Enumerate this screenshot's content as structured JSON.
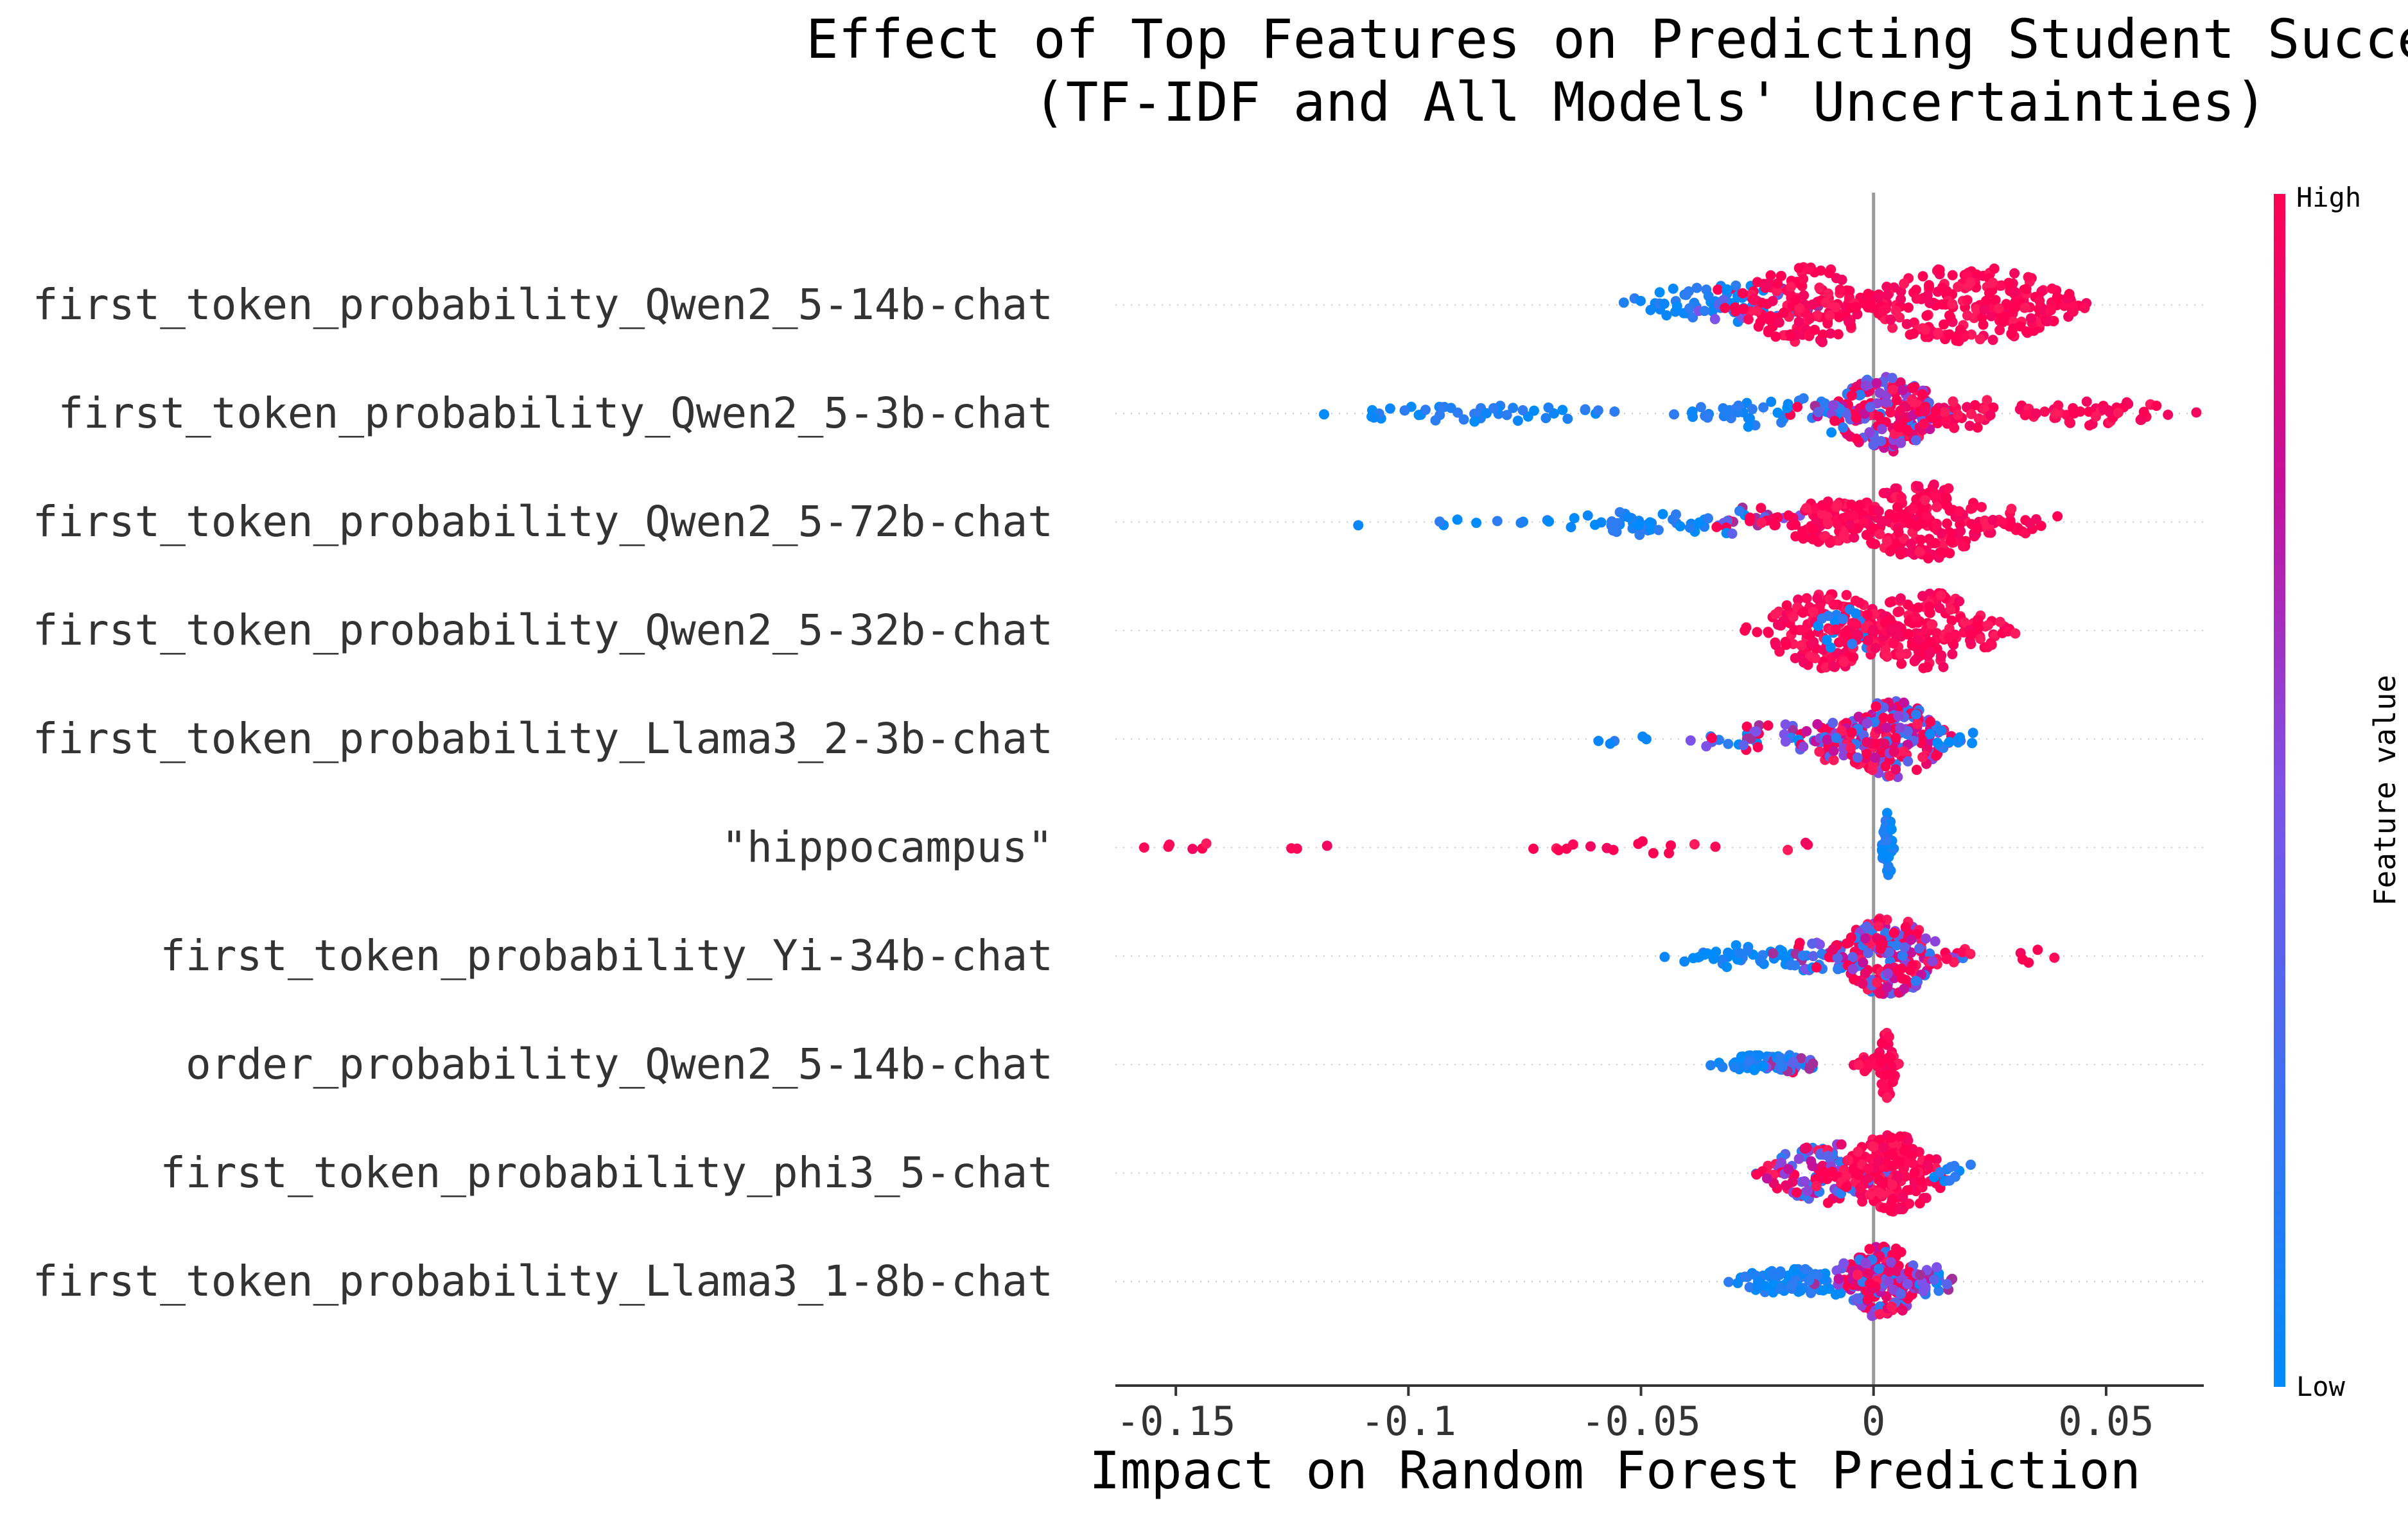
{
  "chart_data": {
    "type": "scatter",
    "subtype": "shap-beeswarm",
    "title": "Effect of Top Features on Predicting Student Success",
    "subtitle": "(TF-IDF and All Models' Uncertainties)",
    "xlabel": "Impact on Random Forest Prediction",
    "xlim": [
      -0.163,
      0.071
    ],
    "xticks": [
      -0.15,
      -0.1,
      -0.05,
      0,
      0.05
    ],
    "xtick_labels": [
      "-0.15",
      "-0.1",
      "-0.05",
      "0",
      "0.05"
    ],
    "zero_line": true,
    "colorbar": {
      "title": "Feature value",
      "high_label": "High",
      "low_label": "Low",
      "low_color": "#008bfb",
      "high_color": "#ff0052"
    },
    "features": [
      {
        "label": "first_token_probability_Qwen2_5-14b-chat",
        "clusters": [
          {
            "center": -0.05,
            "spread": 0.004,
            "n": 6,
            "color": "low",
            "width": 0.3
          },
          {
            "center": -0.037,
            "spread": 0.008,
            "n": 40,
            "color": "low",
            "width": 0.55
          },
          {
            "center": -0.026,
            "spread": 0.007,
            "n": 40,
            "color": "mixlow",
            "width": 0.55
          },
          {
            "center": -0.014,
            "spread": 0.008,
            "n": 150,
            "color": "high",
            "width": 1.0
          },
          {
            "center": 0.0,
            "spread": 0.005,
            "n": 12,
            "color": "high",
            "width": 0.3
          },
          {
            "center": 0.02,
            "spread": 0.012,
            "n": 200,
            "color": "high",
            "width": 1.0
          },
          {
            "center": 0.035,
            "spread": 0.005,
            "n": 35,
            "color": "high",
            "width": 0.5
          }
        ]
      },
      {
        "label": "first_token_probability_Qwen2_5-3b-chat",
        "clusters": [
          {
            "center": -0.085,
            "spread": 0.018,
            "n": 45,
            "color": "low",
            "width": 0.22
          },
          {
            "center": -0.025,
            "spread": 0.008,
            "n": 35,
            "color": "low",
            "width": 0.35
          },
          {
            "center": -0.01,
            "spread": 0.005,
            "n": 25,
            "color": "mixlow",
            "width": 0.5
          },
          {
            "center": 0.003,
            "spread": 0.006,
            "n": 180,
            "color": "mix",
            "width": 1.0
          },
          {
            "center": 0.02,
            "spread": 0.008,
            "n": 45,
            "color": "high",
            "width": 0.4
          },
          {
            "center": 0.05,
            "spread": 0.008,
            "n": 45,
            "color": "high",
            "width": 0.35
          }
        ]
      },
      {
        "label": "first_token_probability_Qwen2_5-72b-chat",
        "clusters": [
          {
            "center": -0.111,
            "spread": 0.001,
            "n": 1,
            "color": "low",
            "width": 0.1
          },
          {
            "center": -0.088,
            "spread": 0.004,
            "n": 5,
            "color": "low",
            "width": 0.2
          },
          {
            "center": -0.05,
            "spread": 0.01,
            "n": 45,
            "color": "low",
            "width": 0.35
          },
          {
            "center": -0.025,
            "spread": 0.006,
            "n": 25,
            "color": "mixlow",
            "width": 0.4
          },
          {
            "center": -0.01,
            "spread": 0.006,
            "n": 90,
            "color": "high",
            "width": 0.55
          },
          {
            "center": 0.01,
            "spread": 0.008,
            "n": 190,
            "color": "high",
            "width": 1.0
          },
          {
            "center": 0.03,
            "spread": 0.006,
            "n": 25,
            "color": "high",
            "width": 0.35
          }
        ]
      },
      {
        "label": "first_token_probability_Qwen2_5-32b-chat",
        "clusters": [
          {
            "center": -0.01,
            "spread": 0.007,
            "n": 160,
            "color": "high",
            "width": 1.0
          },
          {
            "center": -0.005,
            "spread": 0.004,
            "n": 18,
            "color": "low",
            "width": 0.6
          },
          {
            "center": 0.012,
            "spread": 0.008,
            "n": 170,
            "color": "high",
            "width": 1.0
          }
        ]
      },
      {
        "label": "first_token_probability_Llama3_2-3b-chat",
        "clusters": [
          {
            "center": -0.055,
            "spread": 0.004,
            "n": 5,
            "color": "low",
            "width": 0.15
          },
          {
            "center": -0.035,
            "spread": 0.004,
            "n": 5,
            "color": "mixlow",
            "width": 0.2
          },
          {
            "center": -0.022,
            "spread": 0.006,
            "n": 30,
            "color": "mixlow",
            "width": 0.4
          },
          {
            "center": -0.008,
            "spread": 0.004,
            "n": 35,
            "color": "mix",
            "width": 0.6
          },
          {
            "center": 0.004,
            "spread": 0.006,
            "n": 190,
            "color": "mix",
            "width": 1.0
          },
          {
            "center": 0.017,
            "spread": 0.003,
            "n": 12,
            "color": "low",
            "width": 0.3
          }
        ]
      },
      {
        "label": "\"hippocampus\"",
        "clusters": [
          {
            "center": -0.148,
            "spread": 0.004,
            "n": 6,
            "color": "high",
            "width": 0.15
          },
          {
            "center": -0.116,
            "spread": 0.005,
            "n": 3,
            "color": "high",
            "width": 0.15
          },
          {
            "center": -0.072,
            "spread": 0.006,
            "n": 6,
            "color": "high",
            "width": 0.15
          },
          {
            "center": -0.045,
            "spread": 0.006,
            "n": 9,
            "color": "high",
            "width": 0.2
          },
          {
            "center": -0.017,
            "spread": 0.003,
            "n": 3,
            "color": "high",
            "width": 0.15
          },
          {
            "center": 0.003,
            "spread": 0.0006,
            "n": 60,
            "color": "low",
            "width": 0.9
          }
        ]
      },
      {
        "label": "first_token_probability_Yi-34b-chat",
        "clusters": [
          {
            "center": -0.03,
            "spread": 0.007,
            "n": 40,
            "color": "low",
            "width": 0.3
          },
          {
            "center": -0.012,
            "spread": 0.005,
            "n": 30,
            "color": "mixlow",
            "width": 0.4
          },
          {
            "center": 0.003,
            "spread": 0.006,
            "n": 190,
            "color": "mix",
            "width": 1.0
          },
          {
            "center": 0.018,
            "spread": 0.003,
            "n": 6,
            "color": "high",
            "width": 0.2
          },
          {
            "center": 0.033,
            "spread": 0.004,
            "n": 5,
            "color": "high",
            "width": 0.2
          }
        ]
      },
      {
        "label": "order_probability_Qwen2_5-14b-chat",
        "clusters": [
          {
            "center": -0.024,
            "spread": 0.005,
            "n": 60,
            "color": "low",
            "width": 0.25
          },
          {
            "center": -0.018,
            "spread": 0.003,
            "n": 25,
            "color": "mixlow",
            "width": 0.25
          },
          {
            "center": 0.0,
            "spread": 0.002,
            "n": 18,
            "color": "high",
            "width": 0.3
          },
          {
            "center": 0.003,
            "spread": 0.001,
            "n": 60,
            "color": "high",
            "width": 0.9
          }
        ]
      },
      {
        "label": "first_token_probability_phi3_5-chat",
        "clusters": [
          {
            "center": -0.01,
            "spread": 0.007,
            "n": 120,
            "color": "mix",
            "width": 0.8
          },
          {
            "center": 0.004,
            "spread": 0.006,
            "n": 180,
            "color": "high",
            "width": 1.0
          },
          {
            "center": 0.018,
            "spread": 0.003,
            "n": 10,
            "color": "low",
            "width": 0.3
          }
        ]
      },
      {
        "label": "first_token_probability_Llama3_1-8b-chat",
        "clusters": [
          {
            "center": -0.018,
            "spread": 0.006,
            "n": 70,
            "color": "low",
            "width": 0.35
          },
          {
            "center": -0.005,
            "spread": 0.004,
            "n": 30,
            "color": "mixlow",
            "width": 0.5
          },
          {
            "center": 0.002,
            "spread": 0.004,
            "n": 160,
            "color": "mix",
            "width": 1.0
          },
          {
            "center": 0.012,
            "spread": 0.003,
            "n": 25,
            "color": "mixlow",
            "width": 0.4
          }
        ]
      }
    ]
  }
}
